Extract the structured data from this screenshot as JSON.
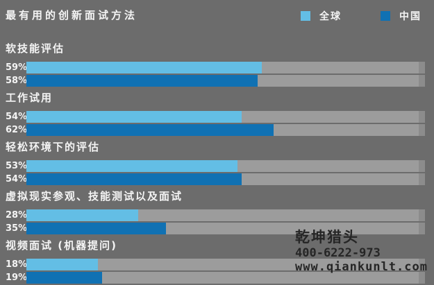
{
  "title": "最有用的创新面试方法",
  "colors": {
    "background": "#6C6C6C",
    "track": "#9C9C9C",
    "global_blue": "#63BEE5",
    "china_blue": "#1071B3",
    "text": "#F4F4F4",
    "watermark_text": "#262626"
  },
  "legend": [
    {
      "label": "全球",
      "color": "#63BEE5"
    },
    {
      "label": "中国",
      "color": "#1071B3"
    }
  ],
  "chart_data": {
    "type": "bar",
    "orientation": "horizontal",
    "title": "最有用的创新面试方法",
    "categories": [
      "软技能评估",
      "工作试用",
      "轻松环境下的评估",
      "虚拟现实参观、技能测试以及面试",
      "视频面试 (机器提问)"
    ],
    "series": [
      {
        "name": "全球",
        "color": "#63BEE5",
        "values": [
          59,
          54,
          53,
          28,
          18
        ]
      },
      {
        "name": "中国",
        "color": "#1071B3",
        "values": [
          58,
          62,
          54,
          35,
          19
        ]
      }
    ],
    "value_format": "percent",
    "value_labels": "left-of-bar",
    "xlim": [
      0,
      100
    ],
    "grid": false,
    "legend_position": "top-right"
  },
  "watermark": {
    "name": "乾坤猎头",
    "phone": "400-6222-973",
    "website": "www.qiankunlt.com"
  }
}
